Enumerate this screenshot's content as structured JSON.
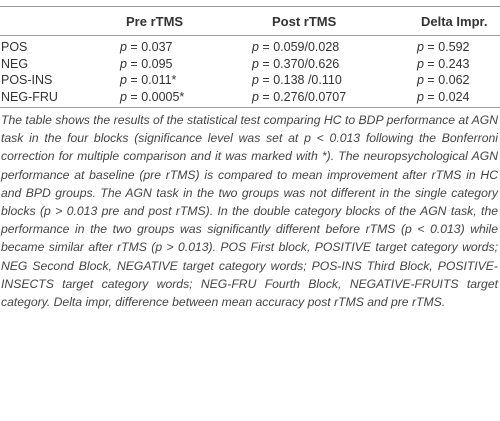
{
  "table": {
    "headers": [
      "",
      "Pre rTMS",
      "Post rTMS",
      "Delta Impr."
    ],
    "rows": [
      {
        "label": "POS",
        "pre": "p = 0.037",
        "post": "p = 0.059/0.028",
        "delta": "p = 0.592"
      },
      {
        "label": "NEG",
        "pre": "p = 0.095",
        "post": "p = 0.370/0.626",
        "delta": "p = 0.243"
      },
      {
        "label": "POS-INS",
        "pre": "p = 0.011*",
        "post": "p = 0.138 /0.110",
        "delta": "p = 0.062"
      },
      {
        "label": "NEG-FRU",
        "pre": "p = 0.0005*",
        "post": "p = 0.276/0.0707",
        "delta": "p = 0.024"
      }
    ]
  },
  "caption": "The table shows the results of the statistical test comparing HC to BDP performance at AGN task in the four blocks (significance level was set at p < 0.013 following the Bonferroni correction for multiple comparison and it was marked with *). The neuropsychological AGN performance at baseline (pre rTMS) is compared to mean improvement after rTMS in HC and BPD groups. The AGN task in the two groups was not different in the single category blocks (p > 0.013 pre and post rTMS). In the double category blocks of the AGN task, the performance in the two groups was significantly different before rTMS (p < 0.013) while became similar after rTMS (p > 0.013). POS First block, POSITIVE target category words; NEG Second Block, NEGATIVE target category words; POS-INS Third Block, POSITIVE-INSECTS target category words; NEG-FRU Fourth Block, NEGATIVE-FRUITS target category. Delta impr, difference between mean accuracy post rTMS and pre rTMS."
}
